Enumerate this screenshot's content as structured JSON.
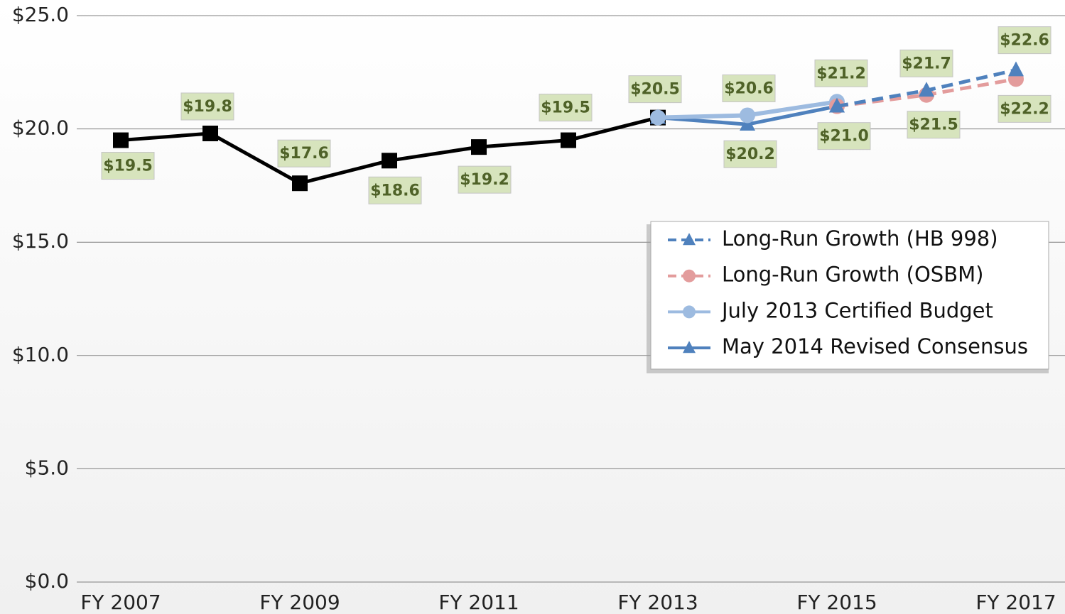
{
  "chart_data": {
    "type": "line",
    "categories": [
      "FY 2007",
      null,
      "FY 2009",
      null,
      "FY 2011",
      null,
      "FY 2013",
      null,
      "FY 2015",
      null,
      "FY 2017"
    ],
    "series": [
      {
        "name": "Long-Run Growth (HB 998)",
        "color": "#4f81bd",
        "dashed": true,
        "marker": "triangle",
        "values": [
          null,
          null,
          null,
          null,
          null,
          null,
          null,
          null,
          21.0,
          21.7,
          22.6
        ],
        "value_labels": [
          null,
          null,
          null,
          null,
          null,
          null,
          null,
          null,
          null,
          "$21.7",
          "$22.6"
        ]
      },
      {
        "name": "Long-Run Growth (OSBM)",
        "color": "#e39c9c",
        "dashed": true,
        "marker": "circle",
        "values": [
          null,
          null,
          null,
          null,
          null,
          null,
          null,
          null,
          21.0,
          21.5,
          22.2
        ],
        "value_labels": [
          null,
          null,
          null,
          null,
          null,
          null,
          null,
          null,
          null,
          "$21.5",
          "$22.2"
        ]
      },
      {
        "name": "July 2013 Certified Budget",
        "color": "#9dbbe0",
        "dashed": false,
        "marker": "circle",
        "values": [
          null,
          null,
          null,
          null,
          null,
          null,
          20.5,
          20.6,
          21.2,
          null,
          null
        ],
        "value_labels": [
          null,
          null,
          null,
          null,
          null,
          null,
          null,
          "$20.6",
          "$21.2",
          null,
          null
        ]
      },
      {
        "name": "May 2014 Revised Consensus",
        "color": "#4f81bd",
        "dashed": false,
        "marker": "triangle",
        "values": [
          null,
          null,
          null,
          null,
          null,
          null,
          20.5,
          20.2,
          21.0,
          null,
          null
        ],
        "value_labels": [
          null,
          null,
          null,
          null,
          null,
          null,
          null,
          "$20.2",
          "$21.0",
          null,
          null
        ]
      },
      {
        "color": "#000000",
        "dashed": false,
        "marker": "square",
        "values": [
          19.5,
          19.8,
          17.6,
          18.6,
          19.2,
          19.5,
          20.5,
          null,
          null,
          null,
          null
        ],
        "value_labels": [
          "$19.5",
          "$19.8",
          "$17.6",
          "$18.6",
          "$19.2",
          "$19.5",
          "$20.5",
          null,
          null,
          null,
          null
        ]
      }
    ],
    "ylim": [
      0,
      25
    ],
    "yticks": [
      {
        "value": 0,
        "label": "$0.0"
      },
      {
        "value": 5,
        "label": "$5.0"
      },
      {
        "value": 10,
        "label": "$10.0"
      },
      {
        "value": 15,
        "label": "$15.0"
      },
      {
        "value": 20,
        "label": "$20.0"
      },
      {
        "value": 25,
        "label": "$25.0"
      }
    ],
    "grid": true,
    "legend": "right"
  }
}
